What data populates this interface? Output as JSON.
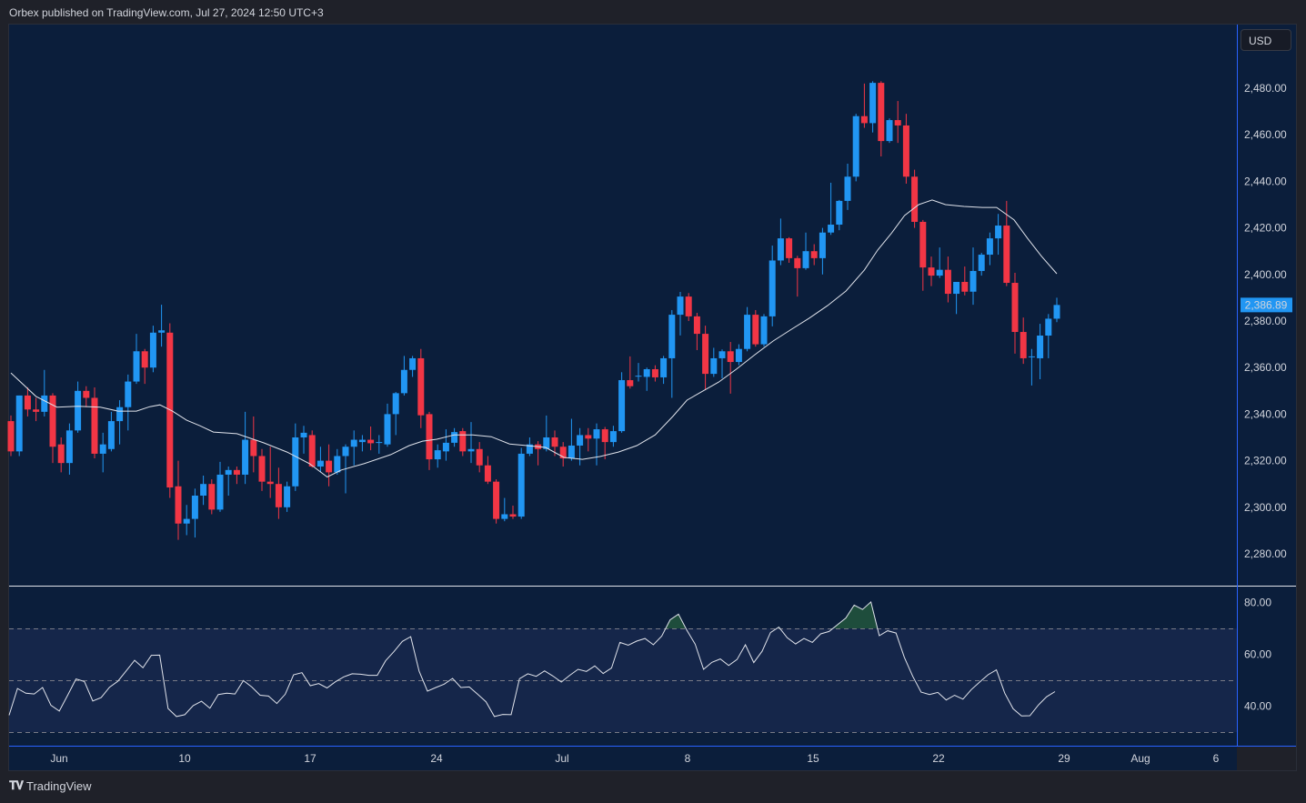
{
  "header": {
    "published": "Orbex published on TradingView.com, Jul 27, 2024 12:50 UTC+3"
  },
  "currency_button": "USD",
  "footer": {
    "logo_text": "TradingView"
  },
  "colors": {
    "background": "#0b1e3b",
    "up": "#2196f3",
    "down": "#f23645",
    "ma": "#e0e3eb",
    "rsi": "#e0e3eb",
    "rsi_band": "#15264a",
    "last_price_label": "#2196f3",
    "overbought_fill": "#1e4d3c"
  },
  "chart_data": [
    {
      "type": "candlestick",
      "currency": "USD",
      "y_ticks": [
        "2,480.00",
        "2,460.00",
        "2,440.00",
        "2,420.00",
        "2,400.00",
        "2,380.00",
        "2,360.00",
        "2,340.00",
        "2,320.00",
        "2,300.00",
        "2,280.00"
      ],
      "ylim": [
        2266,
        2492
      ],
      "last_price": "2,386.89",
      "x_ticks": [
        "Jun",
        "10",
        "17",
        "24",
        "Jul",
        "8",
        "15",
        "22",
        "29",
        "Aug",
        "6"
      ],
      "grid": false,
      "candles_ohlc": [
        [
          2337,
          2339.4,
          2322,
          2324
        ],
        [
          2324,
          2348,
          2322,
          2348
        ],
        [
          2348,
          2351.5,
          2339,
          2342
        ],
        [
          2342,
          2347,
          2337,
          2341
        ],
        [
          2341,
          2359,
          2339,
          2348
        ],
        [
          2348,
          2349,
          2319,
          2326
        ],
        [
          2327,
          2330,
          2315,
          2319
        ],
        [
          2319,
          2336,
          2314,
          2333
        ],
        [
          2333,
          2354,
          2332,
          2350
        ],
        [
          2350,
          2352,
          2343,
          2347
        ],
        [
          2347,
          2351.5,
          2321,
          2323
        ],
        [
          2323,
          2332,
          2315,
          2327
        ],
        [
          2325,
          2341,
          2324,
          2337
        ],
        [
          2337,
          2346,
          2327,
          2343
        ],
        [
          2343,
          2357,
          2333,
          2354
        ],
        [
          2354,
          2374.5,
          2353,
          2367
        ],
        [
          2367,
          2368,
          2353,
          2360
        ],
        [
          2360,
          2378,
          2358,
          2375
        ],
        [
          2375,
          2387,
          2369,
          2376
        ],
        [
          2375,
          2379,
          2304,
          2308.5
        ],
        [
          2309,
          2320,
          2286,
          2293
        ],
        [
          2293,
          2301,
          2288,
          2295
        ],
        [
          2295,
          2308,
          2287,
          2305
        ],
        [
          2305,
          2313.6,
          2301,
          2310
        ],
        [
          2310,
          2312,
          2297,
          2299
        ],
        [
          2299,
          2319.5,
          2298,
          2314
        ],
        [
          2314,
          2317.5,
          2305,
          2316
        ],
        [
          2316,
          2317.5,
          2310,
          2314
        ],
        [
          2314,
          2341,
          2310,
          2329
        ],
        [
          2329,
          2339,
          2315,
          2322
        ],
        [
          2322,
          2325,
          2307,
          2311
        ],
        [
          2311,
          2326,
          2304,
          2310
        ],
        [
          2310,
          2317,
          2295,
          2300
        ],
        [
          2300,
          2311,
          2298,
          2309
        ],
        [
          2309,
          2336,
          2307,
          2330
        ],
        [
          2330,
          2335,
          2323,
          2332
        ],
        [
          2331,
          2333,
          2317,
          2317.5
        ],
        [
          2317.5,
          2326,
          2315,
          2320
        ],
        [
          2320,
          2327,
          2309,
          2315
        ],
        [
          2315,
          2325,
          2314,
          2322
        ],
        [
          2322,
          2327,
          2306,
          2326
        ],
        [
          2326,
          2333,
          2318,
          2329
        ],
        [
          2328,
          2331,
          2324,
          2329
        ],
        [
          2329,
          2334.7,
          2324.5,
          2327.5
        ],
        [
          2328,
          2331,
          2323,
          2328
        ],
        [
          2327,
          2344.5,
          2326,
          2340
        ],
        [
          2340,
          2349.5,
          2331,
          2349
        ],
        [
          2349,
          2365,
          2348,
          2359
        ],
        [
          2359,
          2365,
          2356,
          2364
        ],
        [
          2364,
          2368,
          2334,
          2339.5
        ],
        [
          2340,
          2341,
          2316,
          2320.6
        ],
        [
          2320.6,
          2327,
          2317,
          2324.5
        ],
        [
          2324,
          2333.5,
          2320,
          2327.7
        ],
        [
          2327.7,
          2334,
          2326,
          2332.3
        ],
        [
          2332.7,
          2334,
          2322,
          2324
        ],
        [
          2324,
          2336.6,
          2319,
          2325
        ],
        [
          2325,
          2328,
          2315,
          2318
        ],
        [
          2318,
          2322,
          2310,
          2311
        ],
        [
          2311,
          2312,
          2293,
          2295
        ],
        [
          2295,
          2304,
          2294,
          2297
        ],
        [
          2297,
          2300.7,
          2295,
          2296
        ],
        [
          2296,
          2325.5,
          2295,
          2323
        ],
        [
          2323,
          2330,
          2322,
          2327
        ],
        [
          2327,
          2328.4,
          2318,
          2325
        ],
        [
          2325,
          2339.4,
          2324,
          2330
        ],
        [
          2330,
          2333,
          2322,
          2326
        ],
        [
          2326,
          2328,
          2317.5,
          2321
        ],
        [
          2321,
          2338,
          2320,
          2326.5
        ],
        [
          2326.5,
          2334,
          2318,
          2331
        ],
        [
          2331,
          2334,
          2324,
          2329.5
        ],
        [
          2329.5,
          2336,
          2318,
          2333.5
        ],
        [
          2333.5,
          2334.5,
          2320.6,
          2328
        ],
        [
          2328,
          2335,
          2326,
          2332.7
        ],
        [
          2332.7,
          2358,
          2332,
          2354.6
        ],
        [
          2354.6,
          2364.8,
          2351,
          2352
        ],
        [
          2356.5,
          2362,
          2354,
          2356.5
        ],
        [
          2356,
          2360,
          2350,
          2359.3
        ],
        [
          2359.3,
          2361,
          2354,
          2355.8
        ],
        [
          2355.8,
          2365,
          2353,
          2364
        ],
        [
          2364,
          2384.7,
          2347,
          2382.7
        ],
        [
          2382.7,
          2392.5,
          2373.8,
          2390.5
        ],
        [
          2390.5,
          2392,
          2380,
          2382
        ],
        [
          2382,
          2383.5,
          2367.5,
          2374.5
        ],
        [
          2374.5,
          2378,
          2350.3,
          2357.3
        ],
        [
          2357.3,
          2368.5,
          2356,
          2364
        ],
        [
          2364,
          2367.8,
          2355.4,
          2367
        ],
        [
          2367,
          2371,
          2348.8,
          2362.4
        ],
        [
          2362.4,
          2370,
          2361,
          2368
        ],
        [
          2368,
          2386,
          2367,
          2382.7
        ],
        [
          2382.7,
          2384.7,
          2369,
          2370
        ],
        [
          2370,
          2383,
          2369,
          2382
        ],
        [
          2382,
          2412.4,
          2377.7,
          2406
        ],
        [
          2406,
          2424,
          2404,
          2415.5
        ],
        [
          2415.5,
          2416,
          2405,
          2407
        ],
        [
          2407,
          2408,
          2390.5,
          2402.7
        ],
        [
          2402.7,
          2418,
          2402,
          2410
        ],
        [
          2410,
          2413,
          2404,
          2407
        ],
        [
          2407,
          2420,
          2400,
          2418
        ],
        [
          2418,
          2439.4,
          2417,
          2421.4
        ],
        [
          2421.4,
          2432,
          2419,
          2431.6
        ],
        [
          2431.6,
          2447.6,
          2427.7,
          2442
        ],
        [
          2442,
          2469,
          2440,
          2468
        ],
        [
          2468,
          2482,
          2463,
          2465
        ],
        [
          2465,
          2483,
          2461,
          2482.3
        ],
        [
          2482.3,
          2483,
          2450.7,
          2457.3
        ],
        [
          2457.3,
          2467,
          2456.5,
          2466.3
        ],
        [
          2466.3,
          2474.5,
          2456.5,
          2464
        ],
        [
          2464,
          2469,
          2439,
          2442
        ],
        [
          2442,
          2445,
          2420,
          2422.6
        ],
        [
          2422.6,
          2423.4,
          2393,
          2403
        ],
        [
          2403,
          2407.7,
          2395,
          2399.5
        ],
        [
          2399.5,
          2411.6,
          2398.5,
          2402
        ],
        [
          2402,
          2407.7,
          2388,
          2391.7
        ],
        [
          2391.7,
          2394.5,
          2383,
          2396.8
        ],
        [
          2396.8,
          2403.4,
          2391,
          2392.6
        ],
        [
          2392.6,
          2411.6,
          2387,
          2401.5
        ],
        [
          2401.5,
          2409.3,
          2399.5,
          2408.5
        ],
        [
          2408.5,
          2418,
          2404,
          2415.5
        ],
        [
          2415.5,
          2426,
          2408.5,
          2421
        ],
        [
          2421,
          2431.6,
          2395,
          2396.4
        ],
        [
          2396.4,
          2400.7,
          2366,
          2375.3
        ],
        [
          2375.3,
          2381.5,
          2361.6,
          2364
        ],
        [
          2364.8,
          2368,
          2352.3,
          2364.8
        ],
        [
          2364,
          2378.8,
          2355,
          2373.75
        ],
        [
          2373.75,
          2383,
          2364,
          2381
        ],
        [
          2381,
          2390,
          2379.5,
          2386.89
        ]
      ],
      "moving_average": [
        [
          0,
          2357.7
        ],
        [
          3,
          2347.6
        ],
        [
          5.5,
          2343
        ],
        [
          8,
          2343.4
        ],
        [
          10.7,
          2343
        ],
        [
          12.8,
          2341.3
        ],
        [
          15,
          2341.3
        ],
        [
          16.6,
          2343.2
        ],
        [
          17.8,
          2344
        ],
        [
          19.3,
          2341.3
        ],
        [
          21,
          2337.4
        ],
        [
          22.6,
          2335
        ],
        [
          24.2,
          2332.3
        ],
        [
          27,
          2331.6
        ],
        [
          30.2,
          2327.7
        ],
        [
          33,
          2323.7
        ],
        [
          35.7,
          2318.7
        ],
        [
          37.8,
          2313
        ],
        [
          39.5,
          2316
        ],
        [
          42.2,
          2318.7
        ],
        [
          45.4,
          2322.6
        ],
        [
          47.6,
          2326.5
        ],
        [
          49.2,
          2328.4
        ],
        [
          50.9,
          2329.2
        ],
        [
          53,
          2331.1
        ],
        [
          55.2,
          2331.1
        ],
        [
          57.4,
          2330.3
        ],
        [
          59.6,
          2327.2
        ],
        [
          61.7,
          2326.5
        ],
        [
          63.9,
          2325.7
        ],
        [
          66.1,
          2321.4
        ],
        [
          68.3,
          2320.6
        ],
        [
          70.4,
          2321.8
        ],
        [
          72.6,
          2323.7
        ],
        [
          74.8,
          2326.5
        ],
        [
          77,
          2331.1
        ],
        [
          79.1,
          2339
        ],
        [
          80.8,
          2346
        ],
        [
          82.4,
          2349.3
        ],
        [
          84.6,
          2353.8
        ],
        [
          86.7,
          2359.3
        ],
        [
          88.9,
          2365.5
        ],
        [
          91.1,
          2371.4
        ],
        [
          93.3,
          2376.5
        ],
        [
          95.4,
          2381.2
        ],
        [
          97.6,
          2386.6
        ],
        [
          99.8,
          2392.9
        ],
        [
          102,
          2401.9
        ],
        [
          103.6,
          2410.5
        ],
        [
          105.2,
          2417.5
        ],
        [
          106.8,
          2425.3
        ],
        [
          108.5,
          2430
        ],
        [
          110.1,
          2432
        ],
        [
          111.7,
          2430
        ],
        [
          113.9,
          2429.2
        ],
        [
          116.1,
          2428.8
        ],
        [
          117.8,
          2428.8
        ],
        [
          119.9,
          2423.4
        ],
        [
          121.5,
          2415.5
        ],
        [
          123.2,
          2407.7
        ],
        [
          125,
          2400.3
        ]
      ]
    },
    {
      "type": "line",
      "indicator": "RSI",
      "y_ticks": [
        "80.00",
        "60.00",
        "40.00"
      ],
      "levels": [
        70,
        50,
        30
      ],
      "ylim": [
        24,
        86
      ],
      "values": [
        36.5,
        46.8,
        45,
        44.7,
        47.2,
        40.3,
        38.1,
        44.2,
        50.5,
        49.5,
        42,
        43.3,
        47.3,
        49.6,
        53.6,
        57.7,
        54.8,
        59.6,
        59.7,
        39.1,
        36,
        36.7,
        40.2,
        41.9,
        39.2,
        44.5,
        45,
        44.7,
        49.9,
        47.4,
        44.2,
        43.9,
        41,
        44.6,
        52.1,
        52.9,
        47.9,
        48.7,
        47,
        49.4,
        51.3,
        52.5,
        52.3,
        51.9,
        51.9,
        57.5,
        61.1,
        65,
        66.8,
        53.5,
        45.8,
        47.2,
        48.5,
        50.7,
        47.2,
        47.4,
        44.6,
        41.7,
        36,
        36.8,
        36.7,
        50.6,
        52.5,
        51.5,
        53.6,
        51.6,
        49.3,
        51.9,
        54.2,
        53.4,
        55.5,
        52.6,
        54.7,
        64.6,
        63.5,
        65.1,
        66.1,
        63.7,
        67,
        73.3,
        75.5,
        69.3,
        63.9,
        54.2,
        56.9,
        58.2,
        55.7,
        58,
        63.7,
        56.8,
        61.2,
        68.4,
        70.5,
        66.4,
        64,
        66.1,
        64.6,
        67.9,
        68.8,
        71.4,
        74,
        79,
        77.3,
        80.2,
        67.2,
        69.1,
        68.2,
        58.8,
        51.5,
        45.4,
        44.5,
        45.3,
        42.4,
        44.2,
        42.7,
        46.4,
        49.3,
        52.1,
        54,
        45,
        39,
        36.2,
        36.3,
        40.4,
        43.6,
        45.6
      ]
    }
  ]
}
